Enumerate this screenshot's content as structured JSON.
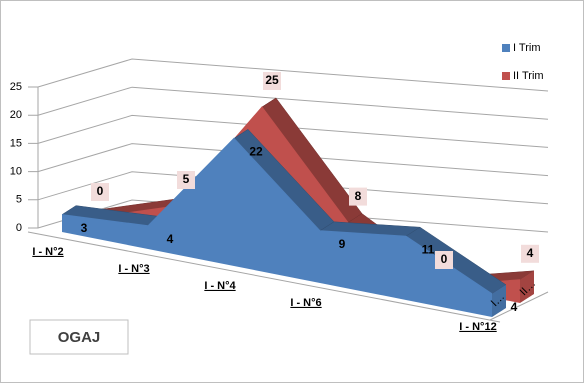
{
  "chart_data": {
    "type": "area3d",
    "categories": [
      "I - N°2",
      "I - N°3",
      "I - N°4",
      "I - N°6",
      null,
      "I - N°12"
    ],
    "series": [
      {
        "name": "I Trim",
        "color": "#4f81bd",
        "values": [
          3,
          4,
          22,
          9,
          11,
          4
        ]
      },
      {
        "name": "II Trim",
        "color": "#c0504d",
        "values": [
          0,
          5,
          25,
          8,
          0,
          4
        ]
      }
    ],
    "depth_labels": [
      "I…",
      "II…"
    ],
    "ylim": [
      0,
      25
    ],
    "yticks": [
      0,
      5,
      10,
      15,
      20,
      25
    ],
    "grid": true,
    "legend": "right",
    "annotation": "OGAJ"
  }
}
